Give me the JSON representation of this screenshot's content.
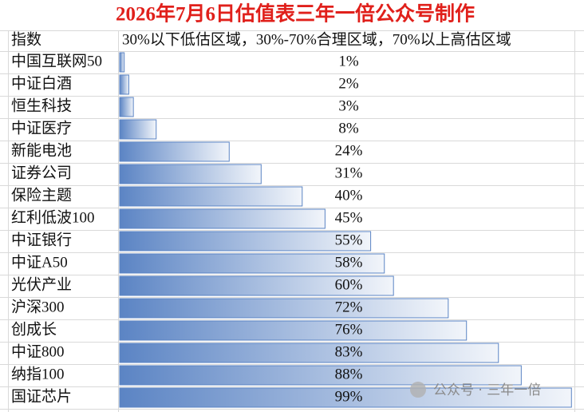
{
  "chart_data": {
    "type": "bar",
    "orientation": "horizontal",
    "title": "2026年7月6日估值表三年一倍公众号制作",
    "category_header": "指数",
    "subtitle": "30%以下低估区域，30%-70%合理区域，70%以上高估区域",
    "categories": [
      "中国互联网50",
      "中证白酒",
      "恒生科技",
      "中证医疗",
      "新能电池",
      "证券公司",
      "保险主题",
      "红利低波100",
      "中证银行",
      "中证A50",
      "光伏产业",
      "沪深300",
      "创成长",
      "中证800",
      "纳指100",
      "国证芯片"
    ],
    "values": [
      1,
      2,
      3,
      8,
      24,
      31,
      40,
      45,
      55,
      58,
      60,
      72,
      76,
      83,
      88,
      99
    ],
    "value_labels": [
      "1%",
      "2%",
      "3%",
      "8%",
      "24%",
      "31%",
      "40%",
      "45%",
      "55%",
      "58%",
      "60%",
      "72%",
      "76%",
      "83%",
      "88%",
      "99%"
    ],
    "xlim": [
      0,
      100
    ],
    "color": "#5b84c4",
    "watermark": "公众号 · 三年一倍"
  }
}
